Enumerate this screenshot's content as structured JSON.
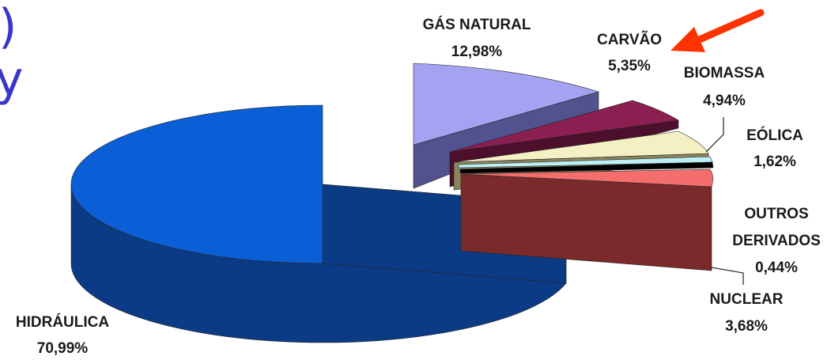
{
  "page": {
    "fragments": [
      ")",
      "y"
    ]
  },
  "colors": {
    "arrow": "#ff3300",
    "leader": "#333333"
  },
  "chart_data": {
    "type": "pie",
    "title": "",
    "three_d": true,
    "exploded": true,
    "slices": [
      {
        "label": "HIDRÁULICA",
        "value_text": "70,99%",
        "value": 70.99,
        "top_color": "#0b5fd6",
        "side_color": "#0c3b85"
      },
      {
        "label": "GÁS NATURAL",
        "value_text": "12,98%",
        "value": 12.98,
        "top_color": "#a3a3f2",
        "side_color": "#52528f"
      },
      {
        "label": "CARVÃO",
        "value_text": "5,35%",
        "value": 5.35,
        "top_color": "#8c1f52",
        "side_color": "#4c0f2c",
        "highlighted": true
      },
      {
        "label": "BIOMASSA",
        "value_text": "4,94%",
        "value": 4.94,
        "top_color": "#f5f0c4",
        "side_color": "#8a8560"
      },
      {
        "label": "EÓLICA",
        "value_text": "1,62%",
        "value": 1.62,
        "top_color": "#bdf0f5",
        "side_color": "#6a9ea2"
      },
      {
        "label": "OUTROS DERIVADOS",
        "label_lines": [
          "OUTROS",
          "DERIVADOS"
        ],
        "value_text": "0,44%",
        "value": 0.44,
        "top_color": "#000000",
        "side_color": "#111111"
      },
      {
        "label": "NUCLEAR",
        "value_text": "3,68%",
        "value": 3.68,
        "top_color": "#f56e6e",
        "side_color": "#7a2a2a"
      }
    ]
  }
}
